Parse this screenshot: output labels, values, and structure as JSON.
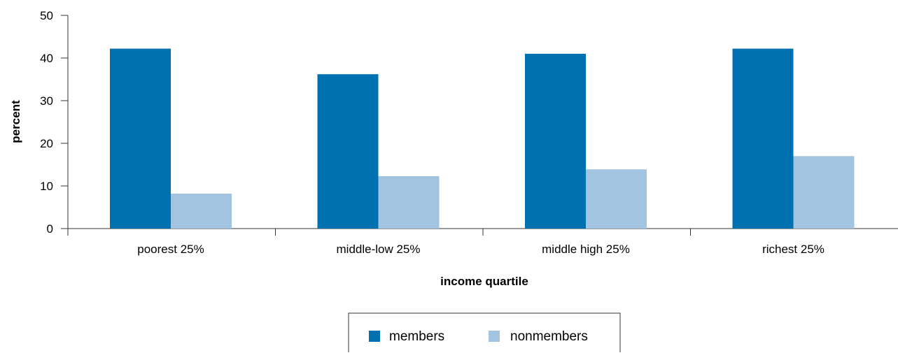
{
  "chart_data": {
    "type": "bar",
    "categories": [
      "poorest 25%",
      "middle-low 25%",
      "middle high 25%",
      "richest 25%"
    ],
    "series": [
      {
        "name": "members",
        "values": [
          42.2,
          36.2,
          41.0,
          42.2
        ],
        "color": "#0071b0"
      },
      {
        "name": "nonmembers",
        "values": [
          8.2,
          12.3,
          13.9,
          17.0
        ],
        "color": "#a2c4e1"
      }
    ],
    "xlabel": "income quartile",
    "ylabel": "percent",
    "ylim": [
      0,
      50
    ],
    "yticks": [
      0,
      10,
      20,
      30,
      40,
      50
    ],
    "grid": false,
    "legend_position": "bottom-center"
  }
}
